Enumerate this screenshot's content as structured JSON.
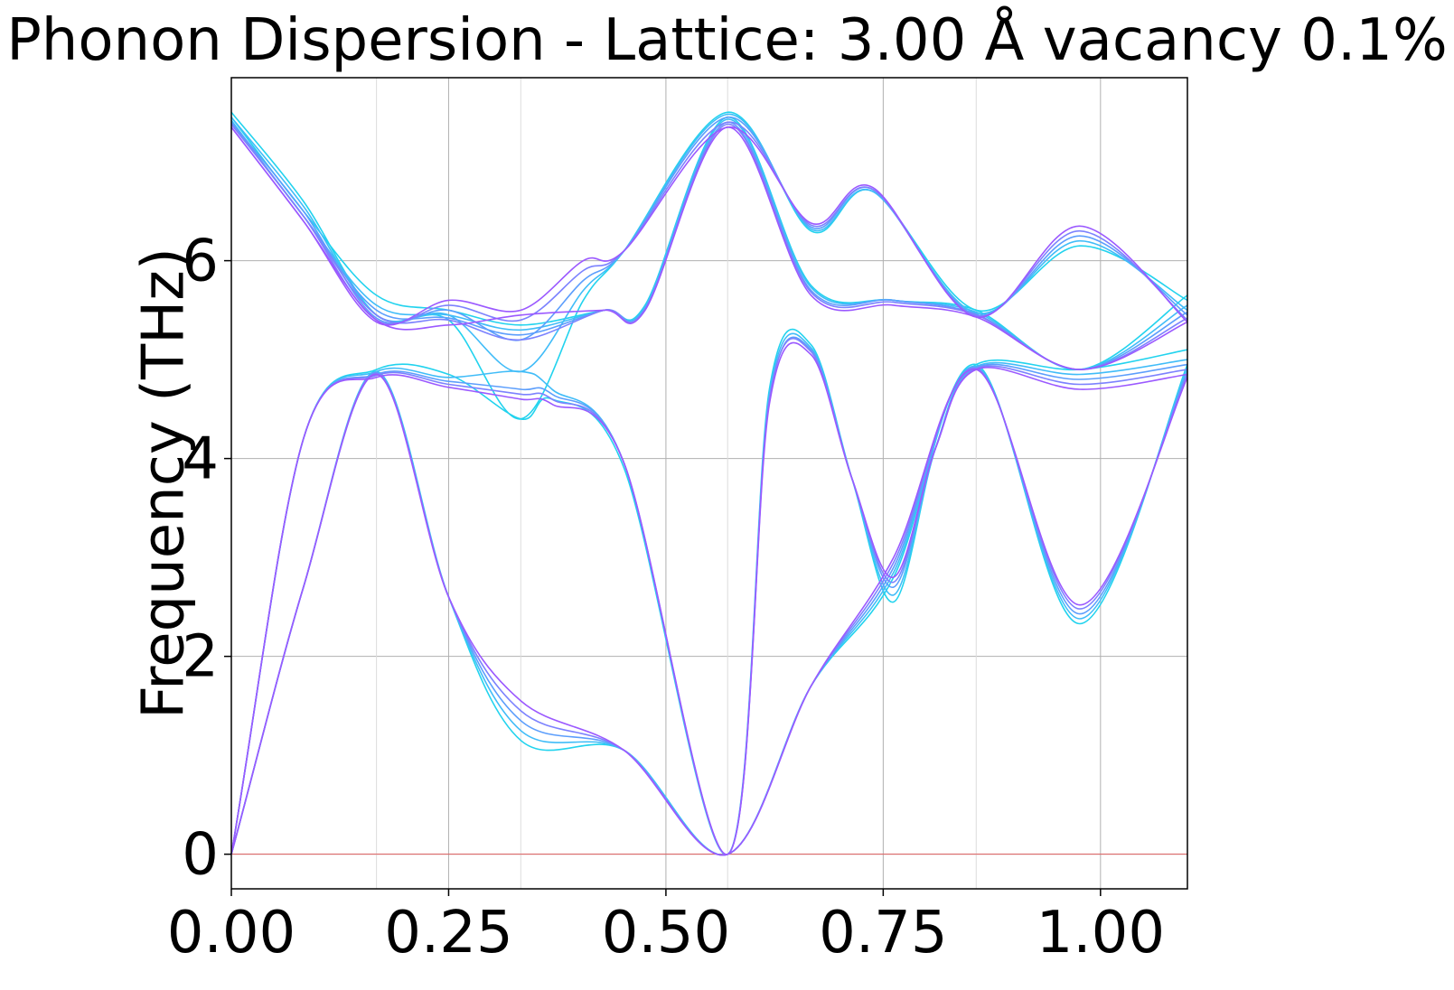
{
  "chart_data": {
    "type": "line",
    "title": "Phonon Dispersion - Lattice: 3.00 Å vacancy 0.1%",
    "xlabel": "",
    "ylabel": "Frequency (THz)",
    "xlim": [
      0.0,
      1.1
    ],
    "ylim": [
      -0.35,
      7.85
    ],
    "x_ticks": [
      0.0,
      0.25,
      0.5,
      0.75,
      1.0
    ],
    "x_tick_labels": [
      "0.00",
      "0.25",
      "0.50",
      "0.75",
      "1.00"
    ],
    "y_ticks": [
      0,
      2,
      4,
      6
    ],
    "y_tick_labels": [
      "0",
      "2",
      "4",
      "6"
    ],
    "grid": true,
    "high_symmetry_x": [
      0.167,
      0.333,
      0.571,
      0.857
    ],
    "zero_line": 0,
    "colors": {
      "zero_line": "#e06060",
      "grid": "#b0b0b0",
      "series_start": "#22d3ee",
      "series_end": "#9b59ff"
    },
    "series": [
      {
        "color": "#22d3ee",
        "bands": [
          {
            "x": [
              0,
              0.083,
              0.167,
              0.25,
              0.333,
              0.452,
              0.571,
              0.667,
              0.762,
              0.857,
              0.976,
              1.1
            ],
            "y": [
              0,
              2.7,
              4.88,
              2.6,
              1.15,
              1.05,
              0,
              1.7,
              2.8,
              4.95,
              2.33,
              4.95
            ]
          },
          {
            "x": [
              0,
              0.083,
              0.167,
              0.25,
              0.333,
              0.369,
              0.452,
              0.571,
              0.619,
              0.667,
              0.714,
              0.762,
              0.81,
              0.857,
              0.976,
              1.1
            ],
            "y": [
              0,
              4.2,
              4.9,
              4.85,
              4.4,
              4.6,
              3.9,
              0,
              4.7,
              5.15,
              3.8,
              2.55,
              4.1,
              4.95,
              4.9,
              5.1
            ]
          },
          {
            "x": [
              0,
              0.083,
              0.167,
              0.25,
              0.333,
              0.429,
              0.476,
              0.571,
              0.667,
              0.762,
              0.857,
              0.976,
              1.1
            ],
            "y": [
              7.45,
              6.5,
              5.65,
              5.5,
              5.35,
              5.5,
              5.55,
              7.45,
              5.75,
              5.6,
              5.5,
              4.9,
              5.65
            ]
          },
          {
            "x": [
              0,
              0.083,
              0.167,
              0.25,
              0.333,
              0.405,
              0.452,
              0.571,
              0.667,
              0.738,
              0.857,
              0.976,
              1.1
            ],
            "y": [
              7.5,
              6.6,
              5.45,
              5.4,
              4.4,
              5.6,
              6.1,
              7.5,
              6.3,
              6.7,
              5.5,
              6.15,
              5.6
            ]
          }
        ]
      },
      {
        "color": "#40bcf8",
        "bands": [
          {
            "x": [
              0,
              0.083,
              0.167,
              0.25,
              0.333,
              0.452,
              0.571,
              0.667,
              0.762,
              0.857,
              0.976,
              1.1
            ],
            "y": [
              0,
              2.7,
              4.85,
              2.6,
              1.25,
              1.05,
              0,
              1.7,
              2.85,
              4.93,
              2.38,
              4.92
            ]
          },
          {
            "x": [
              0,
              0.083,
              0.167,
              0.25,
              0.333,
              0.369,
              0.452,
              0.571,
              0.619,
              0.667,
              0.714,
              0.762,
              0.81,
              0.857,
              0.976,
              1.1
            ],
            "y": [
              0,
              4.2,
              4.88,
              4.82,
              4.88,
              4.7,
              3.95,
              0,
              4.65,
              5.12,
              3.8,
              2.62,
              4.1,
              4.93,
              4.85,
              5.0
            ]
          },
          {
            "x": [
              0,
              0.083,
              0.167,
              0.25,
              0.333,
              0.429,
              0.476,
              0.571,
              0.667,
              0.762,
              0.857,
              0.976,
              1.1
            ],
            "y": [
              7.42,
              6.45,
              5.55,
              5.45,
              5.3,
              5.5,
              5.53,
              7.43,
              5.73,
              5.6,
              5.48,
              4.9,
              5.55
            ]
          },
          {
            "x": [
              0,
              0.083,
              0.167,
              0.25,
              0.333,
              0.405,
              0.452,
              0.571,
              0.667,
              0.738,
              0.857,
              0.976,
              1.1
            ],
            "y": [
              7.45,
              6.55,
              5.45,
              5.45,
              4.88,
              5.7,
              6.1,
              7.48,
              6.32,
              6.7,
              5.47,
              6.2,
              5.5
            ]
          }
        ]
      },
      {
        "color": "#5c9efc",
        "bands": [
          {
            "x": [
              0,
              0.083,
              0.167,
              0.25,
              0.333,
              0.452,
              0.571,
              0.667,
              0.762,
              0.857,
              0.976,
              1.1
            ],
            "y": [
              0,
              2.7,
              4.87,
              2.6,
              1.35,
              1.05,
              0,
              1.7,
              2.9,
              4.92,
              2.43,
              4.88
            ]
          },
          {
            "x": [
              0,
              0.083,
              0.167,
              0.25,
              0.333,
              0.369,
              0.452,
              0.571,
              0.619,
              0.667,
              0.714,
              0.762,
              0.81,
              0.857,
              0.976,
              1.1
            ],
            "y": [
              0,
              4.2,
              4.85,
              4.78,
              4.7,
              4.65,
              3.95,
              0,
              4.6,
              5.1,
              3.8,
              2.7,
              4.1,
              4.92,
              4.8,
              4.95
            ]
          },
          {
            "x": [
              0,
              0.083,
              0.167,
              0.25,
              0.333,
              0.429,
              0.476,
              0.571,
              0.667,
              0.762,
              0.857,
              0.976,
              1.1
            ],
            "y": [
              7.4,
              6.45,
              5.5,
              5.42,
              5.25,
              5.5,
              5.52,
              7.4,
              5.7,
              5.6,
              5.46,
              4.9,
              5.48
            ]
          },
          {
            "x": [
              0,
              0.083,
              0.167,
              0.25,
              0.333,
              0.405,
              0.452,
              0.571,
              0.667,
              0.738,
              0.857,
              0.976,
              1.1
            ],
            "y": [
              7.4,
              6.5,
              5.42,
              5.5,
              5.2,
              5.8,
              6.1,
              7.45,
              6.34,
              6.72,
              5.45,
              6.25,
              5.45
            ]
          }
        ]
      },
      {
        "color": "#7c82fe",
        "bands": [
          {
            "x": [
              0,
              0.083,
              0.167,
              0.25,
              0.333,
              0.452,
              0.571,
              0.667,
              0.762,
              0.857,
              0.976,
              1.1
            ],
            "y": [
              0,
              2.7,
              4.86,
              2.6,
              1.45,
              1.05,
              0,
              1.7,
              2.95,
              4.91,
              2.48,
              4.85
            ]
          },
          {
            "x": [
              0,
              0.083,
              0.167,
              0.25,
              0.333,
              0.369,
              0.452,
              0.571,
              0.619,
              0.667,
              0.714,
              0.762,
              0.81,
              0.857,
              0.976,
              1.1
            ],
            "y": [
              0,
              4.2,
              4.84,
              4.75,
              4.65,
              4.6,
              3.95,
              0,
              4.6,
              5.08,
              3.8,
              2.75,
              4.1,
              4.91,
              4.75,
              4.9
            ]
          },
          {
            "x": [
              0,
              0.083,
              0.167,
              0.25,
              0.333,
              0.429,
              0.476,
              0.571,
              0.667,
              0.762,
              0.857,
              0.976,
              1.1
            ],
            "y": [
              7.38,
              6.45,
              5.45,
              5.4,
              5.2,
              5.5,
              5.5,
              7.38,
              5.68,
              5.58,
              5.45,
              4.9,
              5.42
            ]
          },
          {
            "x": [
              0,
              0.083,
              0.167,
              0.25,
              0.333,
              0.405,
              0.452,
              0.571,
              0.667,
              0.738,
              0.857,
              0.976,
              1.1
            ],
            "y": [
              7.38,
              6.45,
              5.4,
              5.55,
              5.4,
              5.9,
              6.1,
              7.4,
              6.36,
              6.72,
              5.44,
              6.3,
              5.4
            ]
          }
        ]
      },
      {
        "color": "#9b59ff",
        "bands": [
          {
            "x": [
              0,
              0.083,
              0.167,
              0.25,
              0.333,
              0.452,
              0.571,
              0.667,
              0.762,
              0.857,
              0.976,
              1.1
            ],
            "y": [
              0,
              2.7,
              4.85,
              2.6,
              1.55,
              1.05,
              0,
              1.7,
              3.0,
              4.9,
              2.52,
              4.82
            ]
          },
          {
            "x": [
              0,
              0.083,
              0.167,
              0.25,
              0.333,
              0.369,
              0.452,
              0.571,
              0.619,
              0.667,
              0.714,
              0.762,
              0.81,
              0.857,
              0.976,
              1.1
            ],
            "y": [
              0,
              4.2,
              4.82,
              4.72,
              4.6,
              4.55,
              3.95,
              0,
              4.55,
              5.05,
              3.8,
              2.8,
              4.1,
              4.9,
              4.7,
              4.85
            ]
          },
          {
            "x": [
              0,
              0.083,
              0.167,
              0.25,
              0.333,
              0.429,
              0.476,
              0.571,
              0.667,
              0.762,
              0.857,
              0.976,
              1.1
            ],
            "y": [
              7.35,
              6.4,
              5.4,
              5.35,
              5.45,
              5.5,
              5.5,
              7.35,
              5.65,
              5.55,
              5.43,
              4.9,
              5.38
            ]
          },
          {
            "x": [
              0,
              0.083,
              0.167,
              0.25,
              0.333,
              0.405,
              0.452,
              0.571,
              0.667,
              0.738,
              0.857,
              0.976,
              1.1
            ],
            "y": [
              7.35,
              6.4,
              5.38,
              5.6,
              5.5,
              6.0,
              6.1,
              7.35,
              6.38,
              6.74,
              5.43,
              6.35,
              5.38
            ]
          }
        ]
      }
    ]
  }
}
